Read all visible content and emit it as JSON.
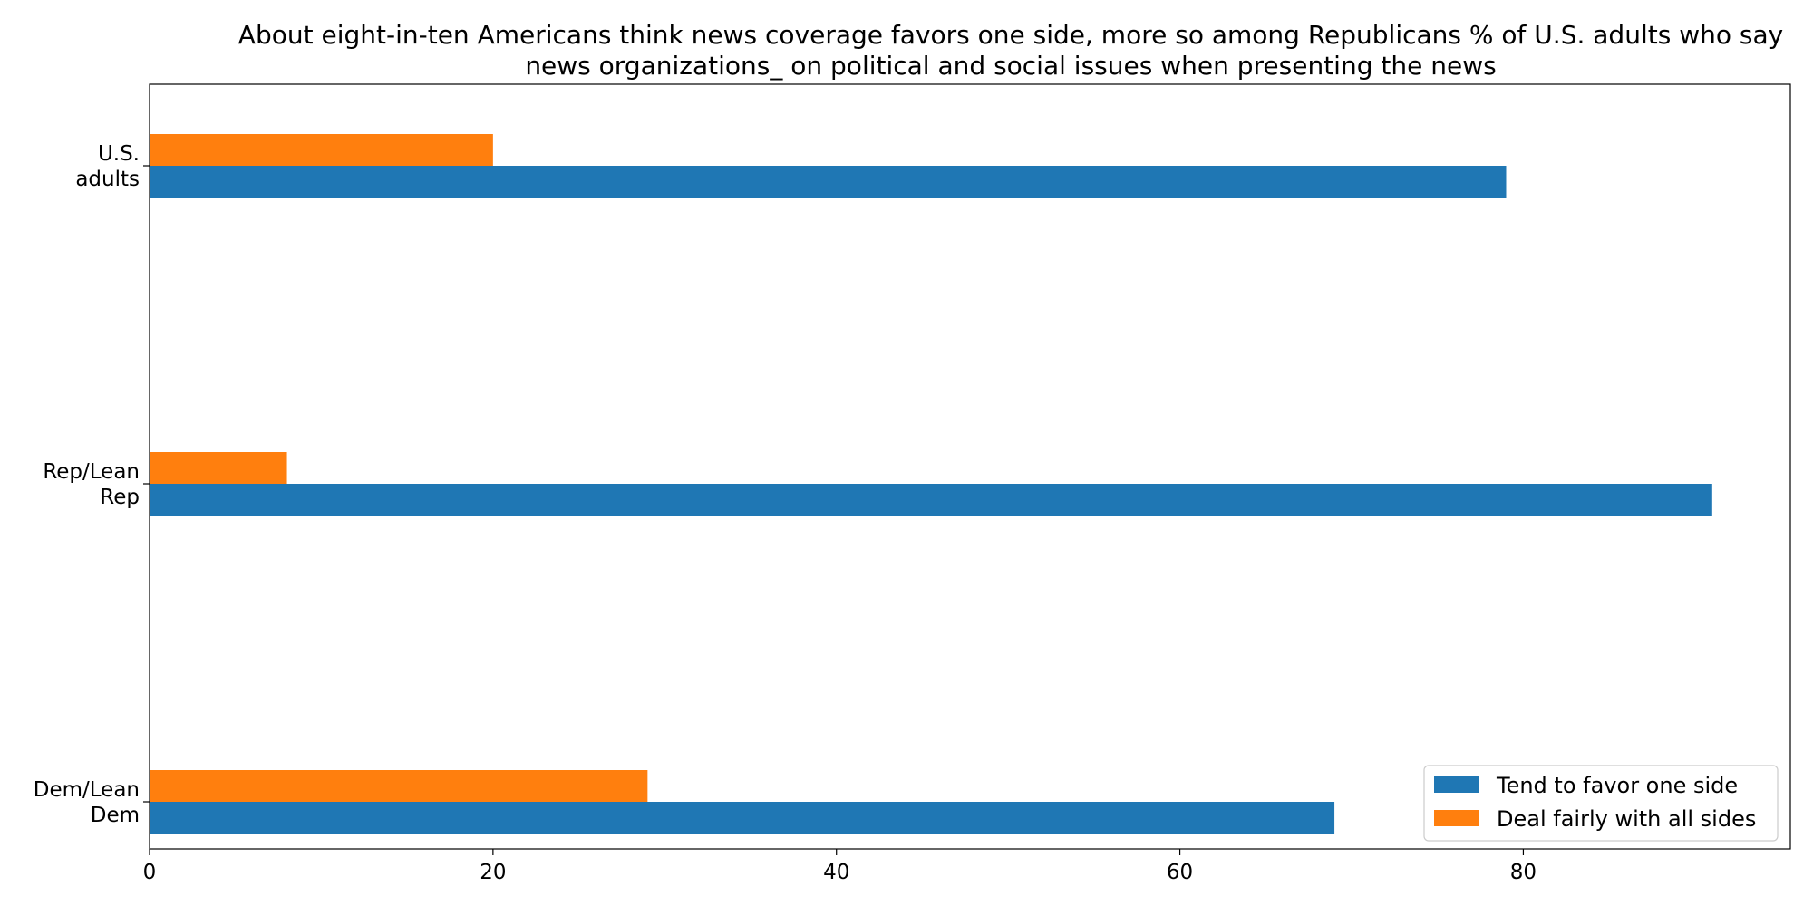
{
  "chart_data": {
    "type": "bar",
    "orientation": "horizontal",
    "title_lines": [
      "About eight-in-ten Americans think news coverage favors one side, more so among Republicans % of U.S. adults who say",
      "news organizations_ on political and social issues when presenting the news"
    ],
    "categories": [
      [
        "U.S.",
        "adults"
      ],
      [
        "Rep/Lean",
        "Rep"
      ],
      [
        "Dem/Lean",
        "Dem"
      ]
    ],
    "series": [
      {
        "name": "Tend to favor one side",
        "color": "#1f77b4",
        "values": [
          79,
          91,
          69
        ]
      },
      {
        "name": "Deal fairly with all sides",
        "color": "#ff7f0e",
        "values": [
          20,
          8,
          29
        ]
      }
    ],
    "xlim": [
      0,
      95.55
    ],
    "xticks": [
      0,
      20,
      40,
      60,
      80
    ],
    "grid": false,
    "legend_position": "bottom-right"
  }
}
